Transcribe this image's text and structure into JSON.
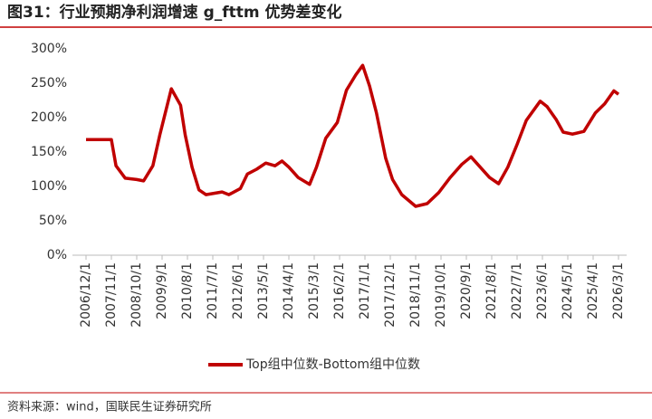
{
  "source": "资料来源：wind，国联民生证券研究所",
  "chart_data": {
    "type": "line",
    "title": "图31：行业预期净利润增速 g_fttm 优势差变化",
    "x": [
      "2006/12/1",
      "2007/11/1",
      "2008/1/1",
      "2008/5/1",
      "2008/10/1",
      "2009/1/1",
      "2009/5/1",
      "2009/8/1",
      "2010/1/1",
      "2010/5/1",
      "2010/7/1",
      "2010/10/1",
      "2011/1/1",
      "2011/4/1",
      "2011/11/1",
      "2012/2/1",
      "2012/7/1",
      "2012/10/1",
      "2013/2/1",
      "2013/6/1",
      "2013/10/1",
      "2014/1/1",
      "2014/4/1",
      "2014/8/1",
      "2015/1/1",
      "2015/4/1",
      "2015/8/1",
      "2016/1/1",
      "2016/5/1",
      "2016/9/1",
      "2016/12/1",
      "2017/3/1",
      "2017/6/1",
      "2017/10/1",
      "2018/1/1",
      "2018/5/1",
      "2018/11/1",
      "2019/4/1",
      "2019/9/1",
      "2020/2/1",
      "2020/7/1",
      "2020/11/1",
      "2021/3/1",
      "2021/7/1",
      "2021/11/1",
      "2022/3/1",
      "2022/7/1",
      "2022/11/1",
      "2023/5/1",
      "2023/8/1",
      "2023/12/1",
      "2024/3/1",
      "2024/7/1",
      "2024/12/1",
      "2025/5/1",
      "2025/9/1",
      "2026/1/1",
      "2026/3/1"
    ],
    "series": [
      {
        "name": "Top组中位数-Bottom组中位数",
        "color": "#c00000",
        "values": [
          168,
          168,
          130,
          112,
          110,
          108,
          130,
          175,
          242,
          218,
          175,
          128,
          95,
          88,
          92,
          88,
          97,
          118,
          125,
          134,
          130,
          137,
          128,
          113,
          103,
          128,
          170,
          193,
          240,
          262,
          276,
          246,
          207,
          141,
          110,
          88,
          71,
          75,
          91,
          113,
          132,
          143,
          128,
          113,
          104,
          128,
          161,
          196,
          224,
          216,
          197,
          179,
          176,
          180,
          207,
          220,
          239,
          234
        ]
      }
    ],
    "xlim": [
      "2006/12/1",
      "2026/3/1"
    ],
    "xticks": [
      "2006/12/1",
      "2007/11/1",
      "2008/10/1",
      "2009/9/1",
      "2010/8/1",
      "2011/7/1",
      "2012/6/1",
      "2013/5/1",
      "2014/4/1",
      "2015/3/1",
      "2016/2/1",
      "2017/1/1",
      "2017/12/1",
      "2018/11/1",
      "2019/10/1",
      "2020/9/1",
      "2021/8/1",
      "2022/7/1",
      "2023/6/1",
      "2024/5/1",
      "2025/4/1",
      "2026/3/1"
    ],
    "ylim": [
      0,
      300
    ],
    "yticks": [
      {
        "value": 0,
        "label": "0%"
      },
      {
        "value": 50,
        "label": "50%"
      },
      {
        "value": 100,
        "label": "100%"
      },
      {
        "value": 150,
        "label": "150%"
      },
      {
        "value": 200,
        "label": "200%"
      },
      {
        "value": 250,
        "label": "250%"
      },
      {
        "value": 300,
        "label": "300%"
      }
    ],
    "grid": false,
    "legend": "bottom"
  }
}
